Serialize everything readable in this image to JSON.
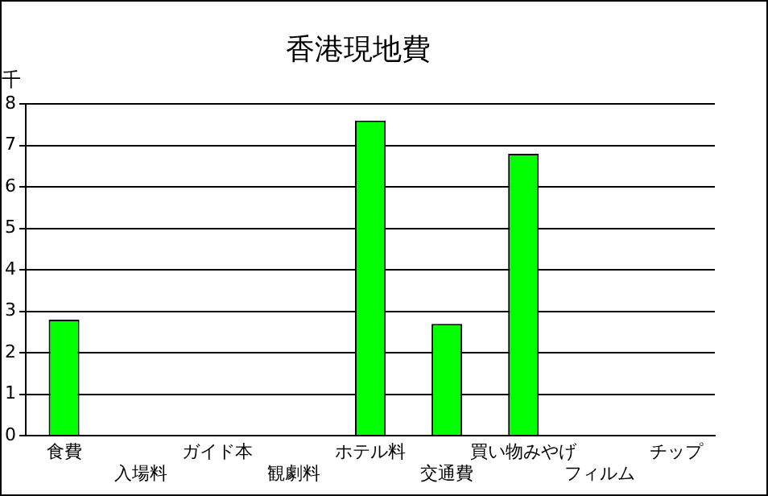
{
  "chart_data": {
    "type": "bar",
    "title": "香港現地費",
    "ylabel": "千",
    "categories": [
      "食費",
      "入場料",
      "ガイド本",
      "観劇料",
      "ホテル料",
      "交通費",
      "買い物みやげ",
      "フィルム",
      "チップ"
    ],
    "values": [
      2.8,
      0,
      0,
      0,
      7.6,
      2.7,
      6.8,
      0,
      0
    ],
    "color": "#00ff00",
    "ylim": [
      0,
      8
    ],
    "yticks": [
      0,
      1,
      2,
      3,
      4,
      5,
      6,
      7,
      8
    ],
    "grid": "y",
    "legend": false
  }
}
